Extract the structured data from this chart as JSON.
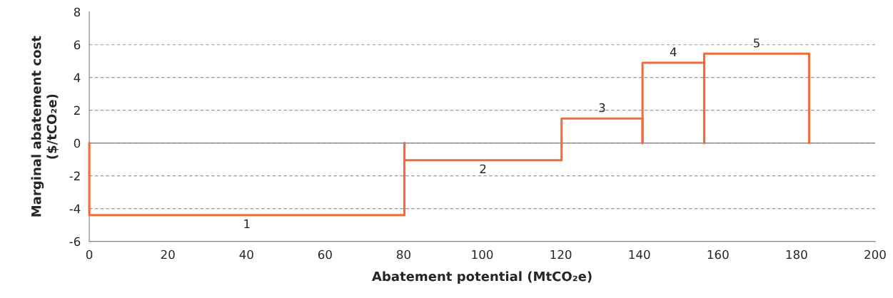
{
  "chart_data": {
    "type": "histogram",
    "xlabel": "Abatement potential (MtCO₂e)",
    "ylabel": "Marginal abatement cost\n($/tCO₂e)",
    "bins": [
      0,
      80.2,
      120.2,
      140.8,
      156.5,
      183.2
    ],
    "values": [
      -4.4,
      -1.05,
      1.5,
      4.9,
      5.45
    ],
    "color": "#f26b3a",
    "xlim": [
      0,
      200
    ],
    "xticks": [
      0,
      20,
      40,
      60,
      80,
      100,
      120,
      140,
      160,
      180,
      200
    ],
    "ylim": [
      -6,
      8
    ],
    "yticks": [
      -6,
      -4,
      -2,
      0,
      2,
      4,
      6,
      8
    ],
    "grid": "y",
    "line_style": "dashed",
    "ref_lines": [
      {
        "axis": "y",
        "value": 0,
        "color": "#808080",
        "line_style": "solid"
      }
    ],
    "annotations": [
      "1",
      "2",
      "3",
      "4",
      "5"
    ]
  }
}
